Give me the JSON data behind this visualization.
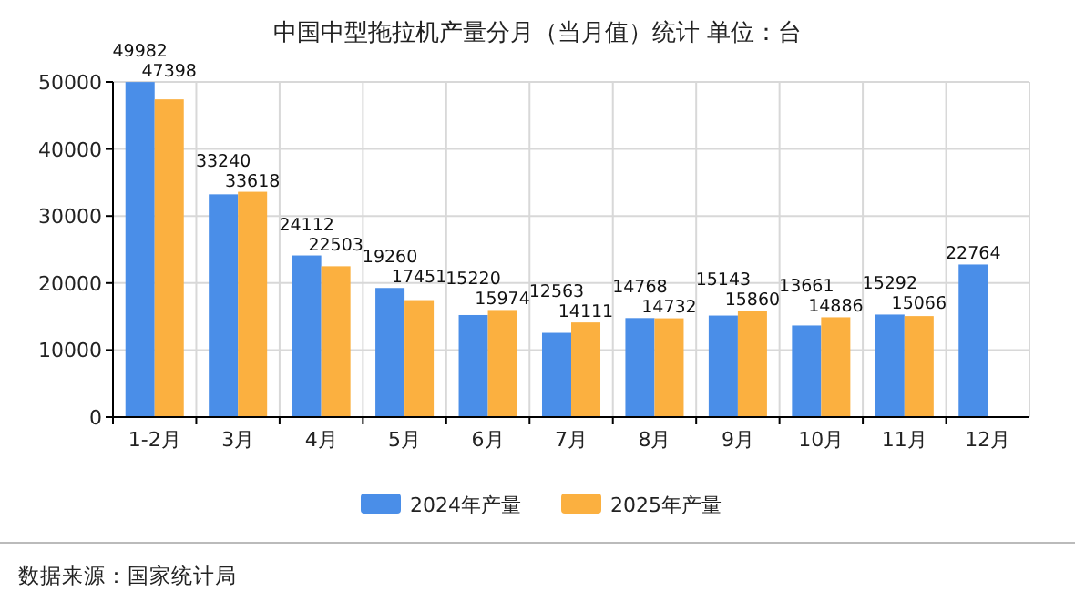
{
  "chart_data": {
    "type": "bar",
    "title": "中国中型拖拉机产量分月（当月值）统计 单位：台",
    "categories": [
      "1-2月",
      "3月",
      "4月",
      "5月",
      "6月",
      "7月",
      "8月",
      "9月",
      "10月",
      "11月",
      "12月"
    ],
    "series": [
      {
        "name": "2024年产量",
        "color": "#4a8ee8",
        "values": [
          49982,
          33240,
          24112,
          19260,
          15220,
          12563,
          14768,
          15143,
          13661,
          15292,
          22764
        ]
      },
      {
        "name": "2025年产量",
        "color": "#fbb040",
        "values": [
          47398,
          33618,
          22503,
          17451,
          15974,
          14111,
          14732,
          15860,
          14886,
          15066,
          null
        ]
      }
    ],
    "ylim": [
      0,
      50000
    ],
    "yticks": [
      0,
      10000,
      20000,
      30000,
      40000,
      50000
    ],
    "grid": true,
    "legend": "bottom",
    "data_labels": true,
    "annotations": [
      "数据来源：国家统计局"
    ]
  }
}
